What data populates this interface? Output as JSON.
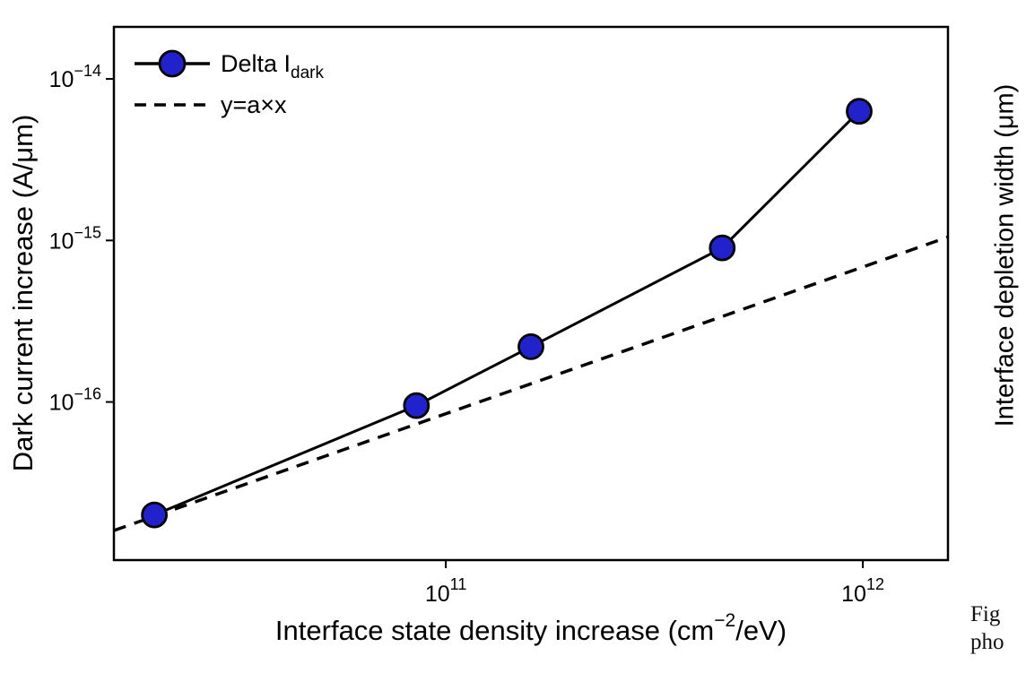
{
  "figure": {
    "background": "#ffffff",
    "line_color": "#000000",
    "marker_color": "#2222cc"
  },
  "chart_data": {
    "type": "line",
    "title": "",
    "x_scale": "log",
    "y_scale": "log",
    "xlabel": {
      "pre": "Interface state density increase (cm",
      "sup": "−2",
      "post": "/eV)"
    },
    "ylabel": "Dark current increase (A/μm)",
    "xlim": [
      16000000000.0,
      1600000000000.0
    ],
    "ylim": [
      1.05e-17,
      2.1e-14
    ],
    "grid": false,
    "legend_position": "top-left",
    "x_ticks": [
      {
        "value": 100000000000.0,
        "base": "10",
        "exp": "11"
      },
      {
        "value": 1000000000000.0,
        "base": "10",
        "exp": "12"
      }
    ],
    "y_ticks": [
      {
        "value": 1e-14,
        "base": "10",
        "exp": "−14"
      },
      {
        "value": 1e-15,
        "base": "10",
        "exp": "−15"
      },
      {
        "value": 1e-16,
        "base": "10",
        "exp": "−16"
      }
    ],
    "series": [
      {
        "name": "Delta I dark",
        "legend": {
          "main": "Delta I",
          "sub": "dark"
        },
        "style": "solid-line-with-markers",
        "color": "#000000",
        "marker_fill": "#2222cc",
        "marker_edge": "#000000",
        "x": [
          20000000000.0,
          85000000000.0,
          160000000000.0,
          460000000000.0,
          980000000000.0
        ],
        "y": [
          2e-17,
          9.5e-17,
          2.2e-16,
          9e-16,
          6.3e-15
        ]
      },
      {
        "name": "linear fit y=a*x",
        "legend": {
          "main": "y=a×x",
          "sub": ""
        },
        "style": "dashed-line",
        "color": "#000000",
        "x": [
          16000000000.0,
          1600000000000.0
        ],
        "y": [
          1.6e-17,
          1.05e-15
        ]
      }
    ]
  },
  "right_panel": {
    "ylabel": "Interface depletion width (μm)"
  },
  "caption": {
    "line1": "Fig",
    "line2": "pho"
  }
}
